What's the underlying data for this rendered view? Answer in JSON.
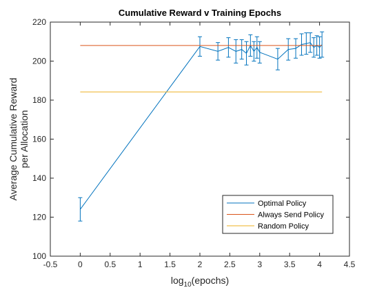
{
  "chart_data": {
    "type": "line",
    "title": "Cumulative Reward v Training Epochs",
    "xlabel_main": "log",
    "xlabel_sub": "10",
    "xlabel_rest": "(epochs)",
    "ylabel_line1": "Average Cumulative Reward",
    "ylabel_line2": "per Allocation",
    "xlim": [
      -0.5,
      4.5
    ],
    "ylim": [
      100,
      220
    ],
    "xticks": [
      -0.5,
      0,
      0.5,
      1,
      1.5,
      2,
      2.5,
      3,
      3.5,
      4,
      4.5
    ],
    "xtick_labels": [
      "-0.5",
      "0",
      "0.5",
      "1",
      "1.5",
      "2",
      "2.5",
      "3",
      "3.5",
      "4",
      "4.5"
    ],
    "yticks": [
      100,
      120,
      140,
      160,
      180,
      200,
      220
    ],
    "ytick_labels": [
      "100",
      "120",
      "140",
      "160",
      "180",
      "200",
      "220"
    ],
    "grid": false,
    "legend_position": "bottom-right",
    "series": [
      {
        "name": "Optimal Policy",
        "color": "#0072BD",
        "x": [
          0,
          2,
          2.301,
          2.477,
          2.602,
          2.699,
          2.778,
          2.845,
          2.903,
          2.954,
          3,
          3.301,
          3.477,
          3.602,
          3.699,
          3.778,
          3.845,
          3.903,
          3.954,
          4,
          4.041
        ],
        "y": [
          124,
          207.5,
          205,
          207,
          205,
          206,
          204,
          208,
          205,
          207,
          204.5,
          201,
          206,
          206.5,
          208.5,
          209,
          209.5,
          207,
          208,
          207,
          208.5
        ],
        "err": [
          6,
          5,
          4.5,
          5,
          6,
          5,
          6,
          5.5,
          5,
          5.5,
          5.5,
          5.5,
          5.5,
          5,
          5.5,
          5.5,
          5,
          5,
          5,
          5.5,
          6.5
        ]
      },
      {
        "name": "Always Send Policy",
        "color": "#D95319",
        "x": [
          0,
          4.041
        ],
        "y": [
          208,
          208
        ]
      },
      {
        "name": "Random Policy",
        "color": "#EDB120",
        "x": [
          0,
          4.041
        ],
        "y": [
          184.2,
          184.2
        ]
      }
    ]
  }
}
